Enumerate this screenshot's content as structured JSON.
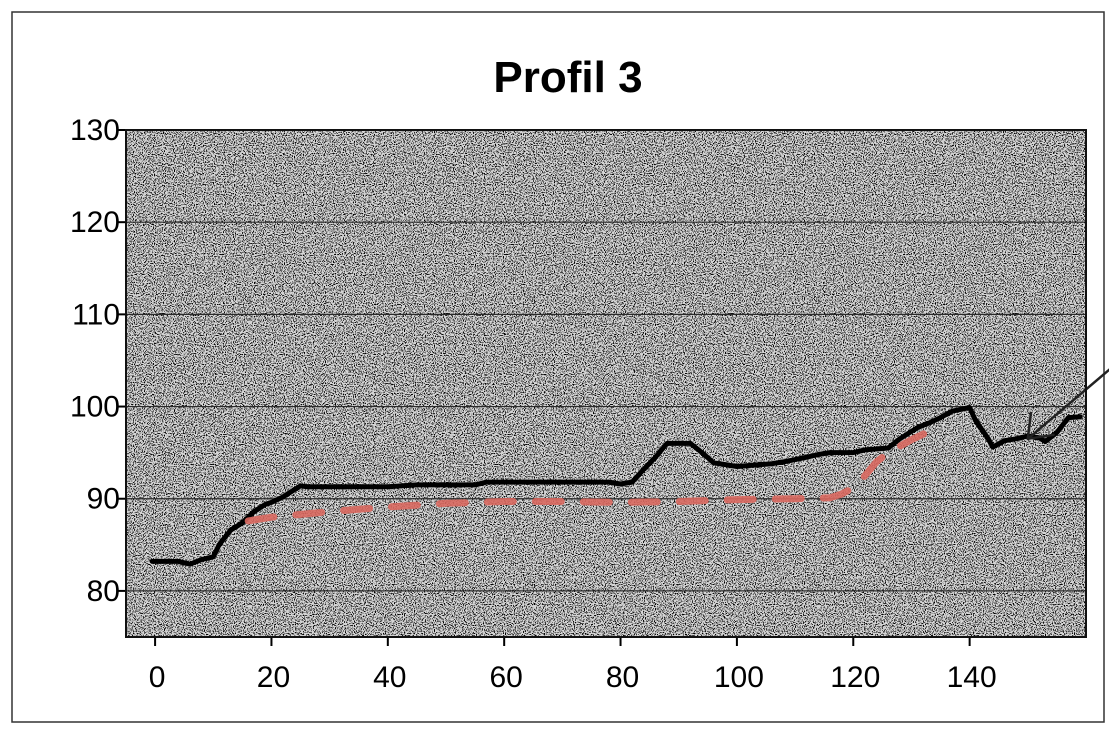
{
  "chart_data": {
    "type": "line",
    "title": "Profil 3",
    "xlabel": "",
    "ylabel": "",
    "xlim": [
      -5,
      160
    ],
    "ylim": [
      75,
      130
    ],
    "x_ticks": [
      0,
      20,
      40,
      60,
      80,
      100,
      120,
      140
    ],
    "y_ticks": [
      80,
      90,
      100,
      110,
      120,
      130
    ],
    "grid": true,
    "legend": "none",
    "colors": {
      "background": "#d6d6d6",
      "grid": "#2a2a2a",
      "terrain_line": "#000000",
      "planned_line": "#d9685f",
      "arrow": "#222222"
    },
    "series": [
      {
        "style": "solid",
        "x": [
          -0.5,
          4,
          6,
          8,
          10,
          11,
          12,
          13,
          15,
          16,
          17,
          18,
          19,
          20,
          22,
          24,
          25,
          26,
          30,
          40,
          45,
          50,
          55,
          57,
          60,
          70,
          78,
          80,
          82,
          83,
          84,
          86,
          88,
          92,
          94,
          96,
          98,
          100,
          104,
          106,
          108,
          112,
          114,
          116,
          120,
          122,
          126,
          128,
          131,
          133,
          135,
          137,
          140,
          141,
          143,
          144,
          146,
          148,
          150,
          152,
          153,
          155,
          157,
          159
        ],
        "y": [
          83.2,
          83.2,
          82.9,
          83.4,
          83.7,
          85.0,
          85.8,
          86.6,
          87.4,
          88.0,
          88.6,
          89.0,
          89.4,
          89.6,
          90.2,
          91.0,
          91.4,
          91.3,
          91.3,
          91.3,
          91.5,
          91.5,
          91.5,
          91.8,
          91.8,
          91.8,
          91.8,
          91.6,
          91.8,
          92.5,
          93.2,
          94.5,
          96.0,
          96.0,
          95.0,
          93.9,
          93.7,
          93.5,
          93.7,
          93.8,
          94.0,
          94.5,
          94.8,
          95.0,
          95.0,
          95.3,
          95.5,
          96.5,
          97.7,
          98.2,
          98.8,
          99.5,
          99.9,
          98.5,
          96.7,
          95.6,
          96.3,
          96.5,
          96.8,
          96.6,
          96.2,
          97.2,
          98.8,
          98.9
        ]
      },
      {
        "style": "dashed",
        "x": [
          16,
          20,
          30,
          40,
          50,
          60,
          70,
          80,
          90,
          100,
          110,
          116,
          118,
          120,
          122,
          124,
          126,
          128,
          130,
          132,
          134
        ],
        "y": [
          87.6,
          88.0,
          88.6,
          89.1,
          89.5,
          89.7,
          89.7,
          89.6,
          89.7,
          89.9,
          90.0,
          90.1,
          90.5,
          91.2,
          92.5,
          94.0,
          95.0,
          95.7,
          96.4,
          97.0,
          97.6
        ]
      }
    ],
    "annotations": [
      {
        "type": "arrow",
        "from": [
          164,
          104
        ],
        "to": [
          150,
          96.5
        ]
      }
    ]
  }
}
